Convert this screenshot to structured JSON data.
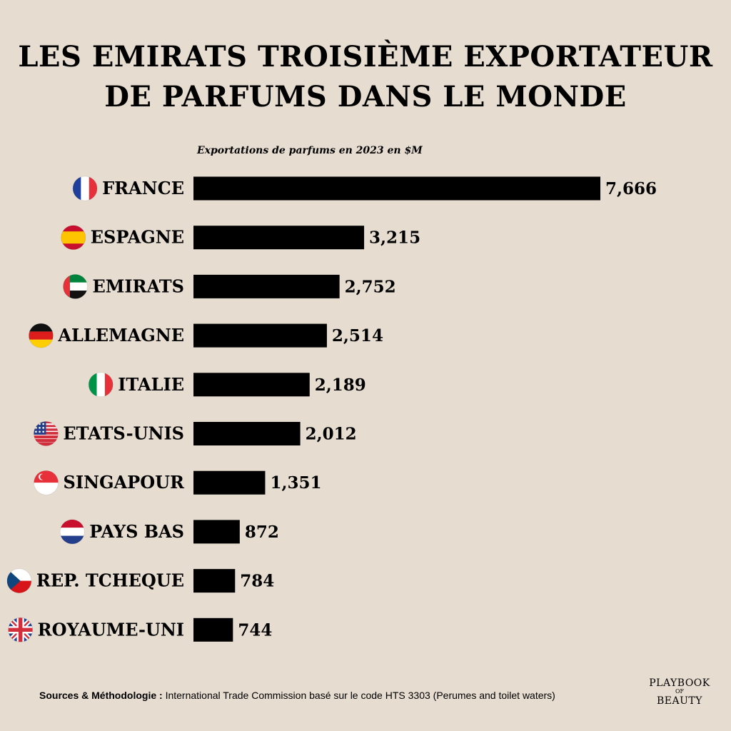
{
  "title": {
    "line1": "LES EMIRATS TROISIÈME EXPORTATEUR",
    "line2": "DE PARFUMS DANS LE MONDE"
  },
  "chart_data": {
    "type": "bar",
    "orientation": "horizontal",
    "title": "LES EMIRATS TROISIÈME EXPORTATEUR DE PARFUMS DANS LE MONDE",
    "subtitle": "Exportations de parfums en 2023 en $M",
    "categories": [
      "FRANCE",
      "ESPAGNE",
      "EMIRATS",
      "ALLEMAGNE",
      "ITALIE",
      "ETATS-UNIS",
      "SINGAPOUR",
      "PAYS BAS",
      "REP. TCHEQUE",
      "ROYAUME-UNI"
    ],
    "values": [
      7666,
      3215,
      2752,
      2514,
      2189,
      2012,
      1351,
      872,
      784,
      744
    ],
    "value_labels": [
      "7,666",
      "3,215",
      "2,752",
      "2,514",
      "2,189",
      "2,012",
      "1,351",
      "872",
      "784",
      "744"
    ],
    "flags": [
      "france-flag-icon",
      "spain-flag-icon",
      "uae-flag-icon",
      "germany-flag-icon",
      "italy-flag-icon",
      "usa-flag-icon",
      "singapore-flag-icon",
      "netherlands-flag-icon",
      "czech-flag-icon",
      "uk-flag-icon"
    ],
    "bar_color": "#000000",
    "background_color": "#e6ddd0",
    "grid": false,
    "legend": "none"
  },
  "source": {
    "label": "Sources & Méthodologie :",
    "text": "International Trade Commission basé sur le code HTS 3303 (Perumes and toilet waters)"
  },
  "logo": {
    "line1": "PLAYBOOK",
    "line2": "OF",
    "line3": "BEAUTY"
  }
}
